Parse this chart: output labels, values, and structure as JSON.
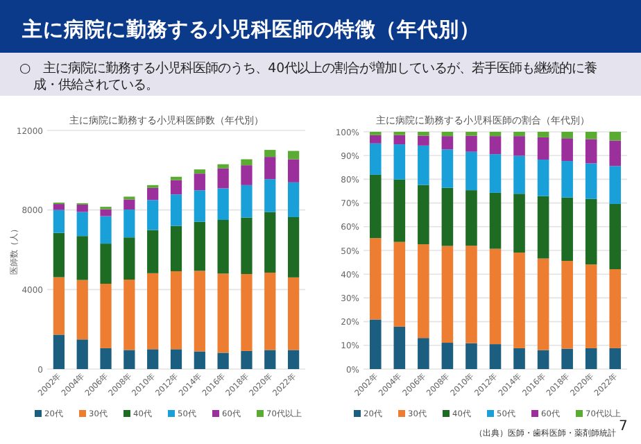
{
  "chart_data": [
    {
      "type": "other",
      "title": "主に病院に勤務する小児科医師の特徴（年代別）",
      "subtitle": "○　主に病院に勤務する小児科医師のうち、40代以上の割合が増加しているが、若手医師も継続的に養成・供給されている。",
      "annotations": [
        "（出典）医師・歯科医師・薬剤師統計",
        "7"
      ]
    },
    {
      "type": "bar",
      "stacked": true,
      "title": "主に病院に勤務する小児科医師数（年代別）",
      "ylabel": "医師数（人）",
      "categories": [
        "2002年",
        "2004年",
        "2006年",
        "2008年",
        "2010年",
        "2012年",
        "2014年",
        "2016年",
        "2018年",
        "2020年",
        "2022年"
      ],
      "ylim": [
        0,
        12000
      ],
      "yticks": [
        0,
        4000,
        8000,
        12000
      ],
      "grid": "y",
      "legend": "bottom",
      "series": [
        {
          "name": "20代",
          "color": "#1b5e80",
          "values": [
            1730,
            1490,
            1050,
            960,
            1000,
            1000,
            890,
            820,
            910,
            960,
            960
          ]
        },
        {
          "name": "30代",
          "color": "#ed7d31",
          "values": [
            2890,
            2990,
            3240,
            3540,
            3820,
            3920,
            4050,
            3980,
            3870,
            3890,
            3650
          ]
        },
        {
          "name": "40代",
          "color": "#1e6b24",
          "values": [
            2230,
            2210,
            2020,
            2120,
            2170,
            2280,
            2470,
            2700,
            2840,
            3050,
            3030
          ]
        },
        {
          "name": "50代",
          "color": "#1aa0d8",
          "values": [
            1150,
            1210,
            1380,
            1400,
            1510,
            1580,
            1580,
            1590,
            1630,
            1650,
            1750
          ]
        },
        {
          "name": "60代",
          "color": "#9b2f9b",
          "values": [
            300,
            370,
            350,
            510,
            610,
            720,
            840,
            1000,
            1000,
            1120,
            1160
          ]
        },
        {
          "name": "70代以上",
          "color": "#5aab32",
          "values": [
            70,
            70,
            120,
            140,
            140,
            170,
            210,
            210,
            300,
            350,
            420
          ]
        }
      ]
    },
    {
      "type": "bar",
      "stacked": true,
      "title": "主に病院に勤務する小児科医師の割合（年代別）",
      "categories": [
        "2002年",
        "2004年",
        "2006年",
        "2008年",
        "2010年",
        "2012年",
        "2014年",
        "2016年",
        "2018年",
        "2020年",
        "2022年"
      ],
      "ylim": [
        0,
        100
      ],
      "yticks": [
        {
          "value": 0,
          "label": "0%"
        },
        {
          "value": 10,
          "label": "10%"
        },
        {
          "value": 20,
          "label": "20%"
        },
        {
          "value": 30,
          "label": "30%"
        },
        {
          "value": 40,
          "label": "40%"
        },
        {
          "value": 50,
          "label": "50%"
        },
        {
          "value": 60,
          "label": "60%"
        },
        {
          "value": 70,
          "label": "70%"
        },
        {
          "value": 80,
          "label": "80%"
        },
        {
          "value": 90,
          "label": "90%"
        },
        {
          "value": 100,
          "label": "100%"
        }
      ],
      "grid": "y",
      "legend": "bottom",
      "series": [
        {
          "name": "20代",
          "color": "#1b5e80",
          "values": [
            20.9,
            17.9,
            13.1,
            11.1,
            10.9,
            10.5,
            8.8,
            8.0,
            8.6,
            8.8,
            8.8
          ]
        },
        {
          "name": "30代",
          "color": "#ed7d31",
          "values": [
            34.3,
            35.7,
            39.5,
            40.8,
            41.1,
            40.2,
            40.3,
            38.6,
            37.0,
            35.3,
            33.3
          ]
        },
        {
          "name": "40代",
          "color": "#1e6b24",
          "values": [
            26.7,
            26.3,
            25.0,
            24.5,
            23.4,
            23.6,
            24.8,
            26.3,
            26.7,
            27.6,
            27.5
          ]
        },
        {
          "name": "50代",
          "color": "#1aa0d8",
          "values": [
            13.2,
            14.8,
            16.6,
            16.2,
            16.2,
            16.3,
            16.0,
            15.4,
            15.4,
            15.0,
            16.0
          ]
        },
        {
          "name": "60代",
          "color": "#9b2f9b",
          "values": [
            3.5,
            3.9,
            4.2,
            5.6,
            6.8,
            7.6,
            8.3,
            9.4,
            9.6,
            10.2,
            10.7
          ]
        },
        {
          "name": "70代以上",
          "color": "#5aab32",
          "values": [
            1.4,
            1.4,
            1.6,
            1.8,
            1.6,
            1.8,
            1.8,
            2.3,
            2.7,
            3.1,
            3.7
          ]
        }
      ]
    }
  ]
}
